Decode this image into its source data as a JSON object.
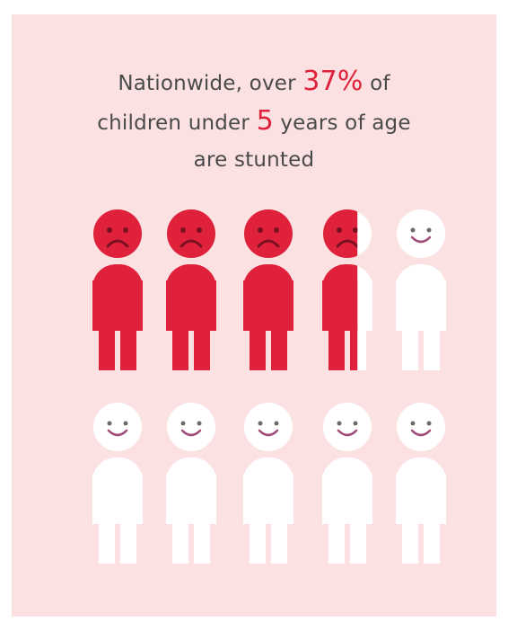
{
  "headline": {
    "line1_pre": "Nationwide, over ",
    "line1_stat": "37%",
    "line1_post": " of",
    "line2_pre": "children under ",
    "line2_stat": "5",
    "line2_post": " years of age",
    "line3": "are stunted"
  },
  "infographic": {
    "total_figures": 10,
    "stunted_fraction": 0.37,
    "colors": {
      "background": "#fbe1e1",
      "stunted": "#e0213b",
      "healthy": "#ffffff",
      "stat_text": "#e0213b",
      "body_text": "#4a4a4a"
    },
    "icons": {
      "stunted": "sad-child-icon",
      "healthy": "happy-child-icon"
    }
  }
}
